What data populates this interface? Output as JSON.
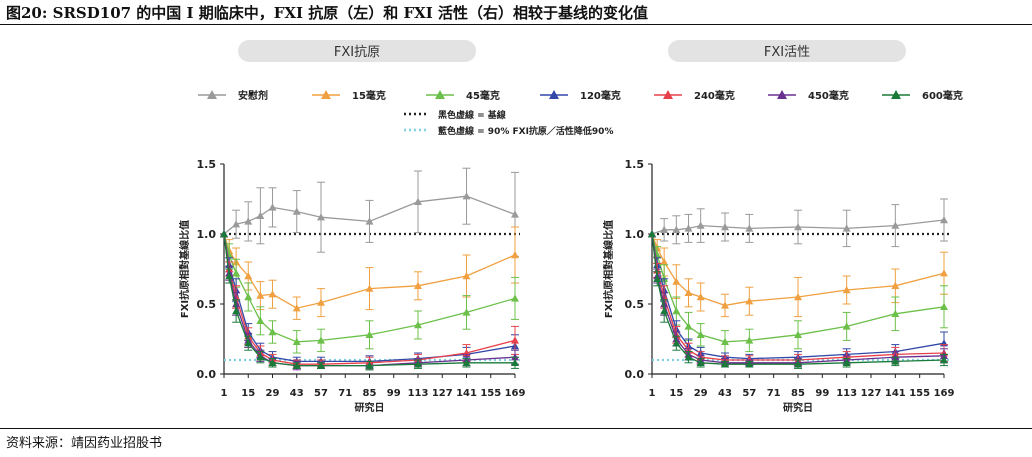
{
  "figure_title": "图20:  SRSD107 的中国 I 期临床中，FXI 抗原（左）和 FXI 活性（右）相较于基线的变化值",
  "source": "资料来源：靖因药业招股书",
  "legend": {
    "entries": [
      {
        "label": "安慰剂",
        "color": "#9a9a9a",
        "marker": "triangle-up"
      },
      {
        "label": "15毫克",
        "color": "#f0a040",
        "marker": "triangle-up"
      },
      {
        "label": "45毫克",
        "color": "#6cc04a",
        "marker": "triangle-up"
      },
      {
        "label": "120毫克",
        "color": "#3248a8",
        "marker": "triangle-up"
      },
      {
        "label": "240毫克",
        "color": "#e8404a",
        "marker": "triangle-up"
      },
      {
        "label": "450毫克",
        "color": "#6a3090",
        "marker": "triangle-up"
      },
      {
        "label": "600毫克",
        "color": "#1a7a3a",
        "marker": "triangle-up"
      }
    ],
    "baseline_label": "黑色虚線 = 基線",
    "threshold_label": "藍色虛線 = 90% FXI抗原／活性降低90%"
  },
  "chart_data": [
    {
      "type": "line",
      "title": "FXI抗原",
      "xlabel": "研究日",
      "ylabel": "FXI抗原相對基線比值",
      "x_ticks": [
        1,
        15,
        29,
        43,
        57,
        71,
        85,
        99,
        113,
        127,
        141,
        155,
        169
      ],
      "y_ticks": [
        "0.0",
        "0.5",
        "1.0",
        "1.5"
      ],
      "xlim": [
        1,
        169
      ],
      "ylim": [
        0,
        1.5
      ],
      "reference_lines": [
        {
          "y": 1.0,
          "style": "dotted",
          "color": "#222222"
        },
        {
          "y": 0.1,
          "style": "dotted",
          "color": "#7fd0e0"
        }
      ],
      "series": [
        {
          "name": "安慰剂",
          "x": [
            1,
            8,
            15,
            22,
            29,
            43,
            57,
            85,
            113,
            141,
            169
          ],
          "y": [
            1.0,
            1.07,
            1.09,
            1.13,
            1.19,
            1.16,
            1.12,
            1.09,
            1.23,
            1.27,
            1.14
          ],
          "err": [
            0,
            0.1,
            0.14,
            0.2,
            0.14,
            0.15,
            0.25,
            0.15,
            0.22,
            0.2,
            0.3
          ]
        },
        {
          "name": "15毫克",
          "x": [
            1,
            4,
            8,
            15,
            22,
            29,
            43,
            57,
            85,
            113,
            141,
            169
          ],
          "y": [
            1.0,
            0.88,
            0.8,
            0.7,
            0.56,
            0.57,
            0.47,
            0.51,
            0.61,
            0.63,
            0.7,
            0.85
          ],
          "err": [
            0,
            0.08,
            0.1,
            0.1,
            0.1,
            0.1,
            0.08,
            0.1,
            0.15,
            0.1,
            0.15,
            0.2
          ]
        },
        {
          "name": "45毫克",
          "x": [
            1,
            4,
            8,
            15,
            22,
            29,
            43,
            57,
            85,
            113,
            141,
            169
          ],
          "y": [
            1.0,
            0.85,
            0.72,
            0.55,
            0.38,
            0.3,
            0.23,
            0.24,
            0.28,
            0.35,
            0.44,
            0.54
          ],
          "err": [
            0,
            0.08,
            0.1,
            0.1,
            0.1,
            0.08,
            0.08,
            0.08,
            0.1,
            0.1,
            0.12,
            0.15
          ]
        },
        {
          "name": "120毫克",
          "x": [
            1,
            4,
            8,
            15,
            22,
            29,
            43,
            57,
            85,
            113,
            141,
            169
          ],
          "y": [
            1.0,
            0.78,
            0.6,
            0.3,
            0.17,
            0.12,
            0.09,
            0.09,
            0.09,
            0.11,
            0.14,
            0.2
          ],
          "err": [
            0,
            0.05,
            0.08,
            0.06,
            0.05,
            0.04,
            0.03,
            0.03,
            0.04,
            0.04,
            0.05,
            0.08
          ]
        },
        {
          "name": "240毫克",
          "x": [
            1,
            4,
            8,
            15,
            22,
            29,
            43,
            57,
            85,
            113,
            141,
            169
          ],
          "y": [
            1.0,
            0.75,
            0.55,
            0.27,
            0.15,
            0.1,
            0.07,
            0.07,
            0.08,
            0.1,
            0.15,
            0.24
          ],
          "err": [
            0,
            0.05,
            0.08,
            0.06,
            0.05,
            0.04,
            0.03,
            0.03,
            0.04,
            0.04,
            0.06,
            0.1
          ]
        },
        {
          "name": "450毫克",
          "x": [
            1,
            4,
            8,
            15,
            22,
            29,
            43,
            57,
            85,
            113,
            141,
            169
          ],
          "y": [
            1.0,
            0.72,
            0.5,
            0.24,
            0.13,
            0.08,
            0.06,
            0.06,
            0.06,
            0.08,
            0.1,
            0.12
          ],
          "err": [
            0,
            0.05,
            0.08,
            0.05,
            0.04,
            0.03,
            0.03,
            0.02,
            0.03,
            0.03,
            0.04,
            0.05
          ]
        },
        {
          "name": "600毫克",
          "x": [
            1,
            4,
            8,
            15,
            22,
            29,
            43,
            57,
            85,
            113,
            141,
            169
          ],
          "y": [
            1.0,
            0.7,
            0.45,
            0.22,
            0.12,
            0.08,
            0.06,
            0.06,
            0.06,
            0.07,
            0.08,
            0.08
          ],
          "err": [
            0,
            0.05,
            0.08,
            0.05,
            0.04,
            0.03,
            0.02,
            0.02,
            0.03,
            0.03,
            0.03,
            0.04
          ]
        }
      ]
    },
    {
      "type": "line",
      "title": "FXI活性",
      "xlabel": "研究日",
      "ylabel": "FXI抗原相對基線比值",
      "x_ticks": [
        1,
        15,
        29,
        43,
        57,
        71,
        85,
        99,
        113,
        127,
        141,
        155,
        169
      ],
      "y_ticks": [
        "0.0",
        "0.5",
        "1.0",
        "1.5"
      ],
      "xlim": [
        1,
        169
      ],
      "ylim": [
        0,
        1.5
      ],
      "reference_lines": [
        {
          "y": 1.0,
          "style": "dotted",
          "color": "#222222"
        },
        {
          "y": 0.1,
          "style": "dotted",
          "color": "#7fd0e0"
        }
      ],
      "series": [
        {
          "name": "安慰剂",
          "x": [
            1,
            8,
            15,
            22,
            29,
            43,
            57,
            85,
            113,
            141,
            169
          ],
          "y": [
            1.0,
            1.03,
            1.03,
            1.04,
            1.06,
            1.05,
            1.04,
            1.05,
            1.04,
            1.06,
            1.1
          ],
          "err": [
            0,
            0.08,
            0.1,
            0.1,
            0.12,
            0.1,
            0.1,
            0.12,
            0.13,
            0.15,
            0.15
          ]
        },
        {
          "name": "15毫克",
          "x": [
            1,
            4,
            8,
            15,
            22,
            29,
            43,
            57,
            85,
            113,
            141,
            169
          ],
          "y": [
            1.0,
            0.9,
            0.8,
            0.66,
            0.58,
            0.55,
            0.49,
            0.52,
            0.55,
            0.6,
            0.63,
            0.72
          ],
          "err": [
            0,
            0.06,
            0.1,
            0.12,
            0.1,
            0.1,
            0.08,
            0.1,
            0.14,
            0.1,
            0.12,
            0.15
          ]
        },
        {
          "name": "45毫克",
          "x": [
            1,
            4,
            8,
            15,
            22,
            29,
            43,
            57,
            85,
            113,
            141,
            169
          ],
          "y": [
            1.0,
            0.85,
            0.68,
            0.45,
            0.34,
            0.28,
            0.23,
            0.24,
            0.28,
            0.34,
            0.43,
            0.48
          ],
          "err": [
            0,
            0.06,
            0.1,
            0.1,
            0.1,
            0.08,
            0.08,
            0.08,
            0.1,
            0.1,
            0.12,
            0.15
          ]
        },
        {
          "name": "120毫克",
          "x": [
            1,
            4,
            8,
            15,
            22,
            29,
            43,
            57,
            85,
            113,
            141,
            169
          ],
          "y": [
            1.0,
            0.78,
            0.6,
            0.32,
            0.2,
            0.15,
            0.12,
            0.11,
            0.12,
            0.14,
            0.16,
            0.22
          ],
          "err": [
            0,
            0.05,
            0.08,
            0.06,
            0.05,
            0.04,
            0.03,
            0.03,
            0.04,
            0.04,
            0.05,
            0.08
          ]
        },
        {
          "name": "240毫克",
          "x": [
            1,
            4,
            8,
            15,
            22,
            29,
            43,
            57,
            85,
            113,
            141,
            169
          ],
          "y": [
            1.0,
            0.74,
            0.55,
            0.28,
            0.17,
            0.12,
            0.1,
            0.1,
            0.1,
            0.12,
            0.14,
            0.15
          ],
          "err": [
            0,
            0.05,
            0.08,
            0.06,
            0.05,
            0.04,
            0.03,
            0.03,
            0.04,
            0.04,
            0.05,
            0.06
          ]
        },
        {
          "name": "450毫克",
          "x": [
            1,
            4,
            8,
            15,
            22,
            29,
            43,
            57,
            85,
            113,
            141,
            169
          ],
          "y": [
            1.0,
            0.7,
            0.5,
            0.25,
            0.14,
            0.1,
            0.08,
            0.08,
            0.08,
            0.1,
            0.12,
            0.13
          ],
          "err": [
            0,
            0.05,
            0.08,
            0.05,
            0.04,
            0.03,
            0.03,
            0.02,
            0.03,
            0.03,
            0.04,
            0.05
          ]
        },
        {
          "name": "600毫克",
          "x": [
            1,
            4,
            8,
            15,
            22,
            29,
            43,
            57,
            85,
            113,
            141,
            169
          ],
          "y": [
            1.0,
            0.68,
            0.45,
            0.22,
            0.12,
            0.08,
            0.07,
            0.07,
            0.07,
            0.08,
            0.09,
            0.1
          ],
          "err": [
            0,
            0.05,
            0.08,
            0.05,
            0.04,
            0.03,
            0.02,
            0.02,
            0.03,
            0.03,
            0.03,
            0.04
          ]
        }
      ]
    }
  ]
}
